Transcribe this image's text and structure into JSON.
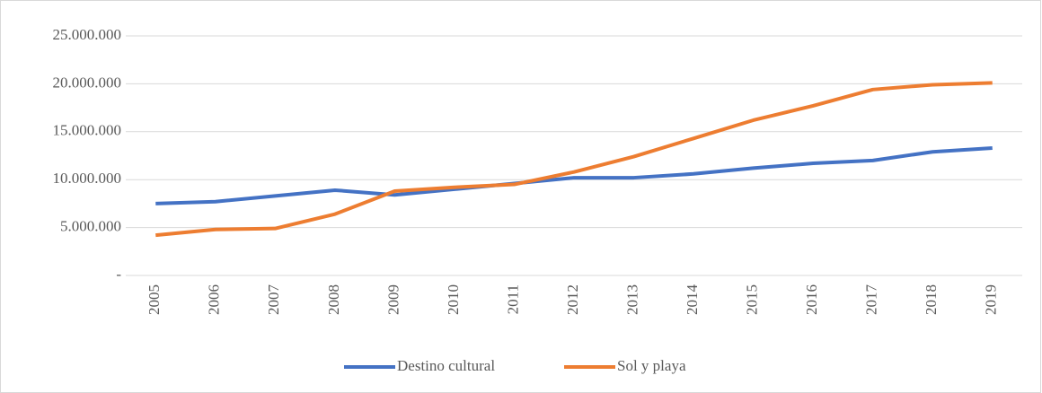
{
  "chart_data": {
    "type": "line",
    "categories": [
      "2005",
      "2006",
      "2007",
      "2008",
      "2009",
      "2010",
      "2011",
      "2012",
      "2013",
      "2014",
      "2015",
      "2016",
      "2017",
      "2018",
      "2019"
    ],
    "series": [
      {
        "name": "Destino cultural",
        "color": "#4472c4",
        "values": [
          7500000,
          7700000,
          8300000,
          8900000,
          8400000,
          9000000,
          9600000,
          10200000,
          10200000,
          10600000,
          11200000,
          11700000,
          12000000,
          12900000,
          13300000
        ]
      },
      {
        "name": "Sol y playa",
        "color": "#ed7d31",
        "values": [
          4200000,
          4800000,
          4900000,
          6400000,
          8800000,
          9200000,
          9500000,
          10800000,
          12400000,
          14300000,
          16200000,
          17700000,
          19400000,
          19900000,
          20100000
        ]
      }
    ],
    "ylim": [
      0,
      25000000
    ],
    "yticks": [
      {
        "value": 0,
        "label": "-"
      },
      {
        "value": 5000000,
        "label": "5.000.000"
      },
      {
        "value": 10000000,
        "label": "10.000.000"
      },
      {
        "value": 15000000,
        "label": "15.000.000"
      },
      {
        "value": 20000000,
        "label": "20.000.000"
      },
      {
        "value": 25000000,
        "label": "25.000.000"
      }
    ],
    "grid": true,
    "legend": "bottom"
  }
}
